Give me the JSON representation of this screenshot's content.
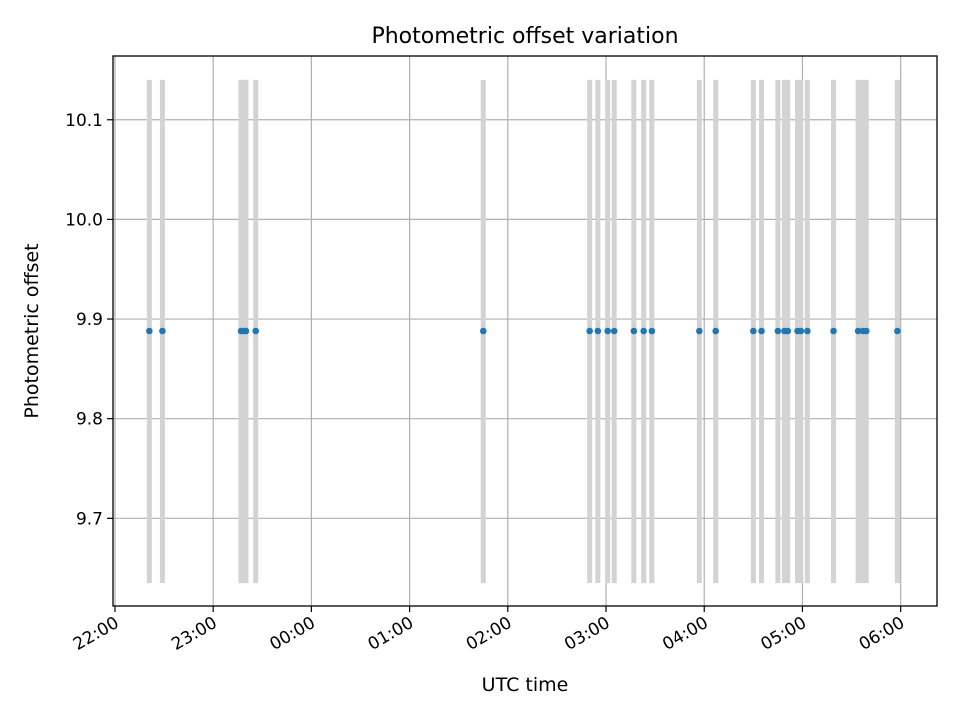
{
  "chart_data": {
    "type": "scatter",
    "title": "Photometric offset variation",
    "xlabel": "UTC time",
    "ylabel": "Photometric offset",
    "x_ticks": [
      "22:00",
      "23:00",
      "00:00",
      "01:00",
      "02:00",
      "03:00",
      "04:00",
      "05:00",
      "06:00"
    ],
    "y_ticks": [
      "9.7",
      "9.8",
      "9.9",
      "10.0",
      "10.1"
    ],
    "x_unit": "hours from 22:00 UTC",
    "xlim": [
      -0.02,
      8.37
    ],
    "ylim": [
      9.612,
      10.164
    ],
    "grid": true,
    "legend": "none",
    "colors": {
      "points": "#1f77b4",
      "errorbars": "#d3d3d3",
      "grid": "#b0b0b0"
    },
    "errorbar_range": [
      9.635,
      10.14
    ],
    "series": [
      {
        "x": [
          "22:21",
          "22:29",
          "23:17",
          "23:19",
          "23:20",
          "23:26",
          "01:45",
          "02:50",
          "02:55",
          "03:01",
          "03:05",
          "03:17",
          "03:23",
          "03:28",
          "03:57",
          "04:07",
          "04:30",
          "04:35",
          "04:45",
          "04:49",
          "04:51",
          "04:57",
          "04:59",
          "05:03",
          "05:19",
          "05:34",
          "05:37",
          "05:39",
          "05:58"
        ],
        "y": [
          9.888,
          9.888,
          9.888,
          9.888,
          9.888,
          9.888,
          9.888,
          9.888,
          9.888,
          9.888,
          9.888,
          9.888,
          9.888,
          9.888,
          9.888,
          9.888,
          9.888,
          9.888,
          9.888,
          9.888,
          9.888,
          9.888,
          9.888,
          9.888,
          9.888,
          9.888,
          9.888,
          9.888,
          9.888
        ]
      }
    ]
  }
}
